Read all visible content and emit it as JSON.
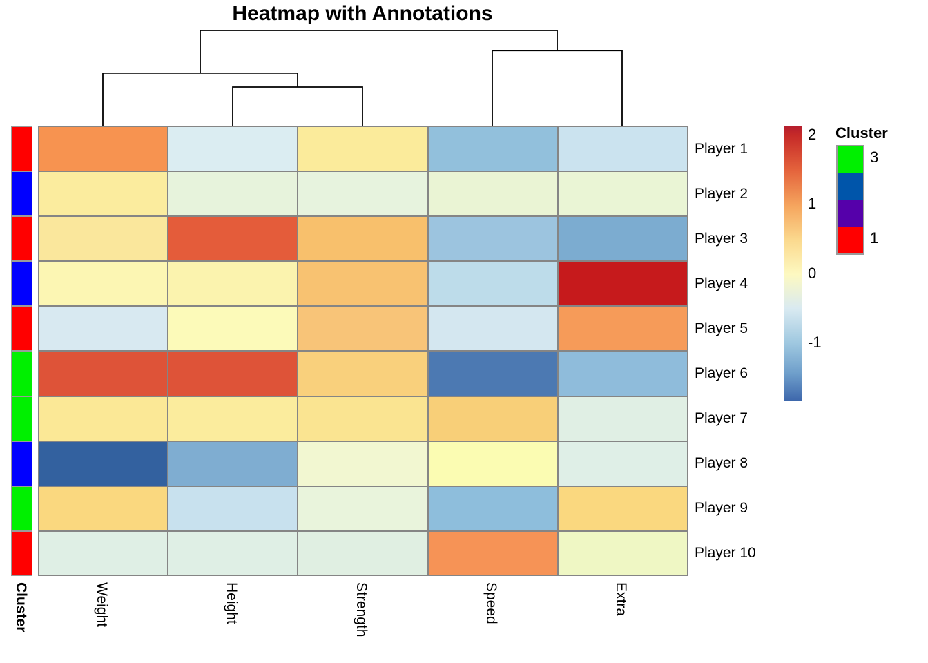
{
  "title": "Heatmap with Annotations",
  "chart_data": {
    "type": "heatmap",
    "title": "Heatmap with Annotations",
    "columns": [
      "Weight",
      "Height",
      "Strength",
      "Speed",
      "Extra"
    ],
    "rows": [
      "Player 1",
      "Player 2",
      "Player 3",
      "Player 4",
      "Player 5",
      "Player 6",
      "Player 7",
      "Player 8",
      "Player 9",
      "Player 10"
    ],
    "cell_colors": [
      [
        "#F79350",
        "#DBEDF2",
        "#FBEB9B",
        "#92C0DC",
        "#CBE3EF"
      ],
      [
        "#FBEC9E",
        "#E7F3DC",
        "#E7F3DE",
        "#EAF4D4",
        "#EAF5D5"
      ],
      [
        "#FAE79C",
        "#E45C3A",
        "#F8C06C",
        "#9CC4DF",
        "#7CACD0"
      ],
      [
        "#FCF6B3",
        "#FBF3AE",
        "#F8C271",
        "#BDDCEA",
        "#C61A1C"
      ],
      [
        "#D8E9F1",
        "#FCFAB9",
        "#F8C478",
        "#D4E7F0",
        "#F69B59"
      ],
      [
        "#DE5338",
        "#DE5338",
        "#F9D07C",
        "#4C79B2",
        "#8FBCDB"
      ],
      [
        "#FBE896",
        "#FBEC9D",
        "#FAE491",
        "#F8CF78",
        "#E0EFE4"
      ],
      [
        "#33619F",
        "#7FADD1",
        "#F2F7D1",
        "#FBFCB2",
        "#DFEFE7"
      ],
      [
        "#FAD87F",
        "#C8E1EE",
        "#E9F4DC",
        "#8EBEDC",
        "#FAD87F"
      ],
      [
        "#DFEFE5",
        "#DFEFE5",
        "#E0EFE2",
        "#F69356",
        "#EFF7C4"
      ]
    ],
    "values_estimated": [
      [
        1.2,
        -0.35,
        0.4,
        -0.9,
        -0.5
      ],
      [
        0.35,
        -0.1,
        -0.1,
        -0.05,
        -0.05
      ],
      [
        0.45,
        1.5,
        0.85,
        -0.8,
        -1.05
      ],
      [
        0.2,
        0.25,
        0.8,
        -0.6,
        2.1
      ],
      [
        -0.35,
        0.15,
        0.75,
        -0.45,
        1.1
      ],
      [
        1.55,
        1.55,
        0.65,
        -1.4,
        -0.95
      ],
      [
        0.5,
        0.45,
        0.55,
        0.65,
        -0.2
      ],
      [
        -1.8,
        -1.0,
        0.05,
        0.15,
        -0.2
      ],
      [
        0.6,
        -0.55,
        -0.1,
        -0.9,
        0.6
      ],
      [
        -0.2,
        -0.2,
        -0.2,
        1.15,
        0.1
      ]
    ],
    "row_annotation": {
      "name": "Cluster",
      "values": [
        "1",
        "2",
        "1",
        "2",
        "1",
        "3",
        "3",
        "2",
        "3",
        "1"
      ],
      "colors": {
        "1": "#FF0000",
        "2": "#0000FF",
        "3": "#00F000"
      }
    },
    "colorbar": {
      "min": -1.83,
      "max": 2.13,
      "ticks": [
        2,
        1,
        0,
        -1
      ],
      "gradient_stops_bottom_to_top": [
        {
          "pos": 0.0,
          "color": "#3E68AC"
        },
        {
          "pos": 0.1,
          "color": "#6F9FCB"
        },
        {
          "pos": 0.21,
          "color": "#9FC8E0"
        },
        {
          "pos": 0.335,
          "color": "#D9EAF1"
        },
        {
          "pos": 0.46,
          "color": "#FDF9C1"
        },
        {
          "pos": 0.585,
          "color": "#FBD98E"
        },
        {
          "pos": 0.71,
          "color": "#F5A55E"
        },
        {
          "pos": 0.84,
          "color": "#E4633C"
        },
        {
          "pos": 0.967,
          "color": "#C62A28"
        },
        {
          "pos": 1.0,
          "color": "#B51E2E"
        }
      ]
    },
    "legend": {
      "title": "Cluster",
      "swatches": [
        {
          "color": "#00F000",
          "label": "3"
        },
        {
          "color": "#0055AA",
          "label": ""
        },
        {
          "color": "#5500AA",
          "label": ""
        },
        {
          "color": "#FF0000",
          "label": "1"
        }
      ]
    },
    "dendrogram": {
      "orientation": "columns",
      "leaves": [
        "Weight",
        "Height",
        "Strength",
        "Speed",
        "Extra"
      ],
      "merges": [
        {
          "id": "m0",
          "a": "Height",
          "b": "Strength",
          "height": 0.41
        },
        {
          "id": "m1",
          "a": "Weight",
          "b": "m0",
          "height": 0.555
        },
        {
          "id": "m2",
          "a": "Speed",
          "b": "Extra",
          "height": 0.79
        },
        {
          "id": "m3",
          "a": "m1",
          "b": "m2",
          "height": 1.0
        }
      ],
      "topology": "((Weight,(Height,Strength)),(Speed,Extra))"
    }
  }
}
